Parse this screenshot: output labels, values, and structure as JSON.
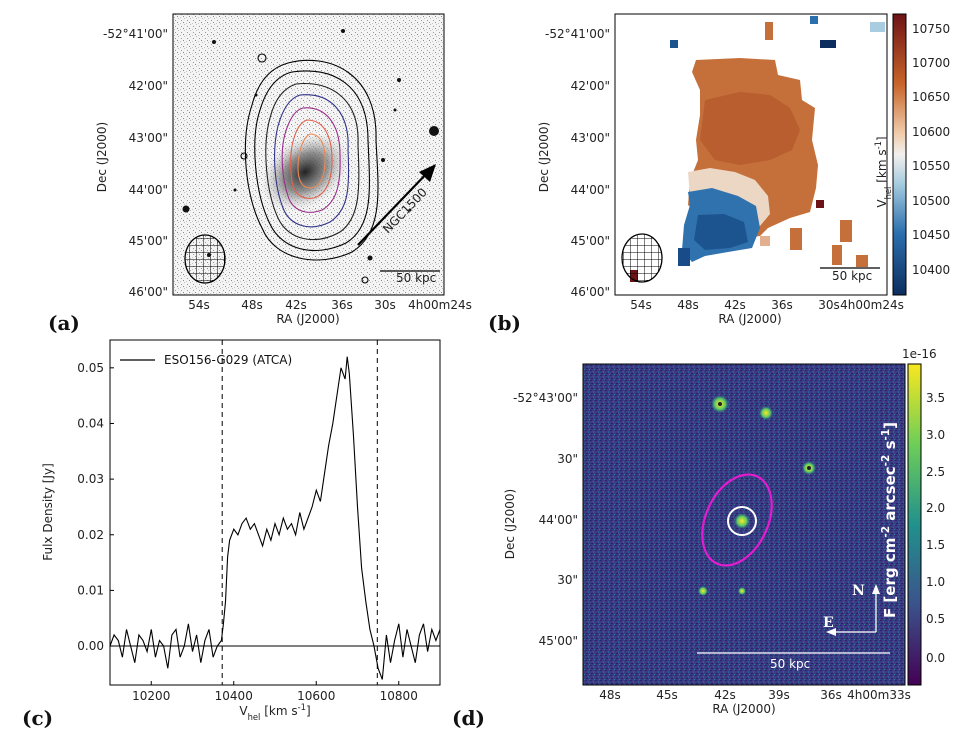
{
  "panels": {
    "a": {
      "label": "(a)",
      "xlabel": "RA (J2000)",
      "ylabel": "Dec (J2000)",
      "xticks": [
        "54s",
        "48s",
        "42s",
        "36s",
        "30s",
        "4h00m24s"
      ],
      "yticks": [
        "-52°41'00\"",
        "42'00\"",
        "43'00\"",
        "44'00\"",
        "45'00\"",
        "46'00\""
      ],
      "arrow_label": "NGC1500",
      "scalebar_label": "50 kpc"
    },
    "b": {
      "label": "(b)",
      "xlabel": "RA (J2000)",
      "ylabel": "Dec (J2000)",
      "xticks": [
        "54s",
        "48s",
        "42s",
        "36s",
        "30s",
        "4h00m24s"
      ],
      "yticks": [
        "-52°41'00\"",
        "42'00\"",
        "43'00\"",
        "44'00\"",
        "45'00\"",
        "46'00\""
      ],
      "colorbar_label": "V_hel [km s^-1]",
      "colorbar_ticks": [
        "10750",
        "10700",
        "10650",
        "10600",
        "10550",
        "10500",
        "10450",
        "10400"
      ],
      "scalebar_label": "50 kpc"
    },
    "c": {
      "label": "(c)",
      "xlabel": "V_hel [km s^-1]",
      "ylabel": "Fulx Density [Jy]",
      "legend": "ESO156-G029 (ATCA)"
    },
    "d": {
      "label": "(d)",
      "xlabel": "RA (J2000)",
      "ylabel": "Dec (J2000)",
      "xticks": [
        "48s",
        "45s",
        "42s",
        "39s",
        "36s",
        "4h00m33s"
      ],
      "yticks": [
        "-52°43'00\"",
        "30\"",
        "44'00\"",
        "30\"",
        "45'00\""
      ],
      "colorbar_offset": "1e-16",
      "colorbar_label": "F [erg cm^-2 arcsec^-2 s^-1]",
      "colorbar_ticks": [
        "3.5",
        "3.0",
        "2.5",
        "2.0",
        "1.5",
        "1.0",
        "0.5",
        "0.0"
      ],
      "compass_n": "N",
      "compass_e": "E",
      "scalebar_label": "50 kpc"
    }
  },
  "chart_data": {
    "type": "line",
    "xlim": [
      10100,
      10900
    ],
    "ylim": [
      -0.007,
      0.055
    ],
    "xticks": [
      10200,
      10400,
      10600,
      10800
    ],
    "yticks": [
      0.0,
      0.01,
      0.02,
      0.03,
      0.04,
      0.05
    ],
    "vlines": [
      10372,
      10748
    ],
    "hline": 0,
    "series": [
      {
        "name": "ESO156-G029 (ATCA)",
        "x": [
          10100,
          10110,
          10120,
          10130,
          10140,
          10150,
          10160,
          10170,
          10180,
          10190,
          10200,
          10210,
          10220,
          10230,
          10240,
          10250,
          10260,
          10270,
          10280,
          10290,
          10300,
          10310,
          10320,
          10330,
          10340,
          10350,
          10360,
          10370,
          10375,
          10380,
          10385,
          10390,
          10400,
          10410,
          10420,
          10430,
          10440,
          10450,
          10460,
          10470,
          10480,
          10490,
          10500,
          10510,
          10520,
          10530,
          10540,
          10550,
          10560,
          10570,
          10580,
          10590,
          10600,
          10610,
          10620,
          10630,
          10640,
          10650,
          10660,
          10670,
          10675,
          10680,
          10690,
          10700,
          10710,
          10720,
          10730,
          10740,
          10750,
          10760,
          10770,
          10780,
          10790,
          10800,
          10810,
          10820,
          10830,
          10840,
          10850,
          10860,
          10870,
          10880,
          10890,
          10900
        ],
        "y": [
          0.0,
          0.002,
          0.001,
          -0.002,
          0.003,
          0.0,
          -0.003,
          0.002,
          0.001,
          -0.001,
          0.003,
          -0.002,
          0.001,
          0.0,
          -0.004,
          0.002,
          0.003,
          -0.002,
          0.0,
          0.004,
          -0.001,
          0.002,
          -0.003,
          0.001,
          0.003,
          -0.002,
          0.0,
          0.001,
          0.004,
          0.008,
          0.016,
          0.019,
          0.021,
          0.02,
          0.022,
          0.023,
          0.021,
          0.022,
          0.02,
          0.018,
          0.021,
          0.019,
          0.022,
          0.02,
          0.023,
          0.021,
          0.022,
          0.02,
          0.024,
          0.021,
          0.023,
          0.025,
          0.028,
          0.026,
          0.031,
          0.036,
          0.04,
          0.045,
          0.05,
          0.048,
          0.052,
          0.049,
          0.038,
          0.025,
          0.014,
          0.008,
          0.003,
          0.0,
          -0.004,
          -0.006,
          0.002,
          -0.003,
          0.001,
          0.004,
          -0.002,
          0.003,
          0.0,
          -0.003,
          0.002,
          0.004,
          -0.001,
          0.003,
          0.001,
          0.003
        ]
      }
    ]
  }
}
